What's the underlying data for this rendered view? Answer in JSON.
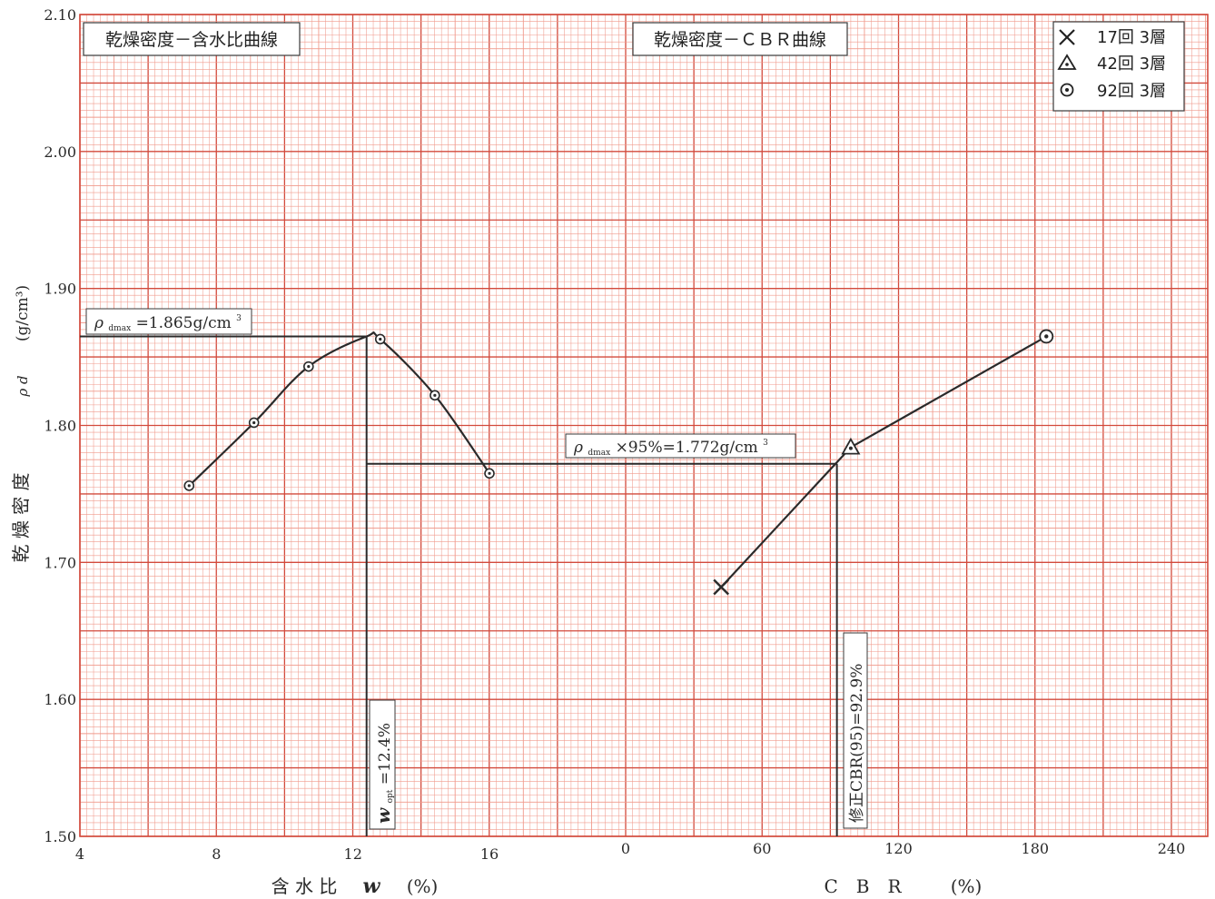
{
  "chart_data": {
    "type": "line",
    "y_axis": {
      "ylim": [
        1.5,
        2.1
      ],
      "ticks": [
        "1.50",
        "1.60",
        "1.70",
        "1.80",
        "1.90",
        "2.00",
        "2.10"
      ],
      "label_main": "乾 燥 密 度",
      "label_symbol": "ρ d",
      "label_unit": "(g/cm³)"
    },
    "panels": [
      {
        "title": "乾燥密度－含水比曲線",
        "x_label": "含 水 比",
        "x_symbol": "w",
        "x_unit": "(%)",
        "xlim": [
          4,
          16
        ],
        "x_ticks": [
          "4",
          "8",
          "12",
          "16"
        ],
        "series": [
          {
            "x": [
              7.2,
              9.1,
              10.7,
              12.8,
              14.4,
              16.0
            ],
            "y": [
              1.756,
              1.802,
              1.843,
              1.863,
              1.822,
              1.765
            ]
          }
        ],
        "curve_peak": {
          "x": 12.4,
          "y": 1.865
        },
        "annotations": {
          "rho_dmax_label_pre": "ρ",
          "rho_dmax_label_sub": "dmax",
          "rho_dmax_label_post": "=1.865g/cm",
          "rho_dmax_label_sup": "3",
          "rho_dmax_value": 1.865,
          "w_opt_label_main": "w",
          "w_opt_label_sub": "opt",
          "w_opt_label_post": "=12.4%",
          "w_opt_value": 12.4
        }
      },
      {
        "title": "乾燥密度－ＣＢＲ曲線",
        "x_label": "C　B　R",
        "x_unit": "(%)",
        "xlim": [
          0,
          240
        ],
        "x_ticks": [
          "0",
          "60",
          "120",
          "180",
          "240"
        ],
        "series": [
          {
            "name": "17回 3層",
            "x": [
              42
            ],
            "y": [
              1.682
            ],
            "marker": "cross"
          },
          {
            "name": "42回 3層",
            "x": [
              99
            ],
            "y": [
              1.784
            ],
            "marker": "triangle"
          },
          {
            "name": "92回 3層",
            "x": [
              185
            ],
            "y": [
              1.865
            ],
            "marker": "circle-dot"
          }
        ],
        "annotations": {
          "rho95_label_pre": "ρ",
          "rho95_label_sub": "dmax",
          "rho95_label_post": "×95%=1.772g/cm",
          "rho95_label_sup": "3",
          "rho95_value": 1.772,
          "cbr95_label": "修正CBR(95)=92.9%",
          "cbr95_value": 92.9
        }
      }
    ],
    "legend": {
      "position": "top-right",
      "items": [
        {
          "marker": "cross",
          "label": "17回 3層"
        },
        {
          "marker": "triangle",
          "label": "42回 3層"
        },
        {
          "marker": "circle-dot",
          "label": "92回 3層"
        }
      ]
    },
    "grid": true,
    "colors": {
      "grid_major": "#d24a3c",
      "grid_minor": "#f09a8c",
      "ink": "#2a2a2a"
    }
  }
}
